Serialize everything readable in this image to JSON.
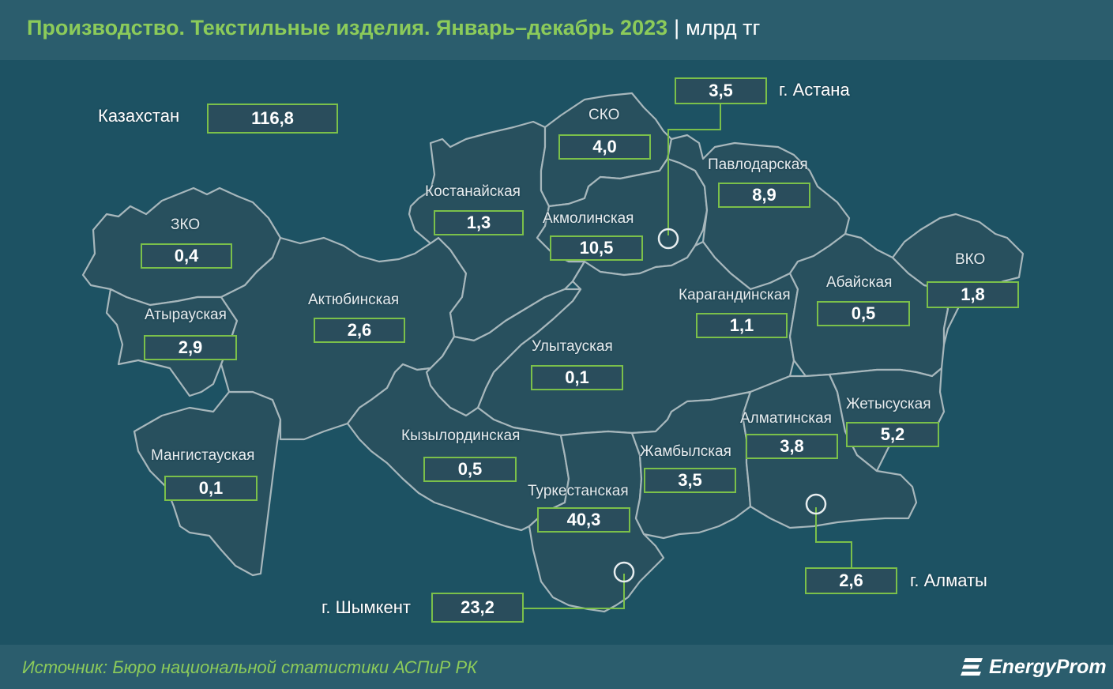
{
  "header": {
    "title": "Производство. Текстильные изделия. Январь–декабрь 2023",
    "separator": "|",
    "unit": "млрд тг"
  },
  "total": {
    "label": "Казахстан",
    "value": "116,8"
  },
  "regions": {
    "zko": {
      "name": "ЗКО",
      "value": "0,4"
    },
    "atyrau": {
      "name": "Атырауская",
      "value": "2,9"
    },
    "mangistau": {
      "name": "Мангистауская",
      "value": "0,1"
    },
    "aktobe": {
      "name": "Актюбинская",
      "value": "2,6"
    },
    "kostanay": {
      "name": "Костанайская",
      "value": "1,3"
    },
    "sko": {
      "name": "СКО",
      "value": "4,0"
    },
    "akmola": {
      "name": "Акмолинская",
      "value": "10,5"
    },
    "pavlodar": {
      "name": "Павлодарская",
      "value": "8,9"
    },
    "karaganda": {
      "name": "Карагандинская",
      "value": "1,1"
    },
    "ulytau": {
      "name": "Улытауская",
      "value": "0,1"
    },
    "abai": {
      "name": "Абайская",
      "value": "0,5"
    },
    "vko": {
      "name": "ВКО",
      "value": "1,8"
    },
    "kyzylorda": {
      "name": "Кызылординская",
      "value": "0,5"
    },
    "turkestan": {
      "name": "Туркестанская",
      "value": "40,3"
    },
    "zhambyl": {
      "name": "Жамбылская",
      "value": "3,5"
    },
    "almaty_reg": {
      "name": "Алматинская",
      "value": "3,8"
    },
    "zhetysu": {
      "name": "Жетысуская",
      "value": "5,2"
    }
  },
  "cities": {
    "astana": {
      "name": "г. Астана",
      "value": "3,5"
    },
    "almaty": {
      "name": "г. Алматы",
      "value": "2,6"
    },
    "shymkent": {
      "name": "г. Шымкент",
      "value": "23,2"
    }
  },
  "footer": {
    "source": "Источник: Бюро национальной статистики АСПиР РК",
    "brand": "EnergyProm"
  },
  "colors": {
    "background": "#1d5263",
    "header_bg": "#2b5d6d",
    "title_green": "#8ccb5a",
    "box_border": "#7bc04a",
    "region_fill": "#28505e",
    "region_border": "#a7b7bc"
  }
}
